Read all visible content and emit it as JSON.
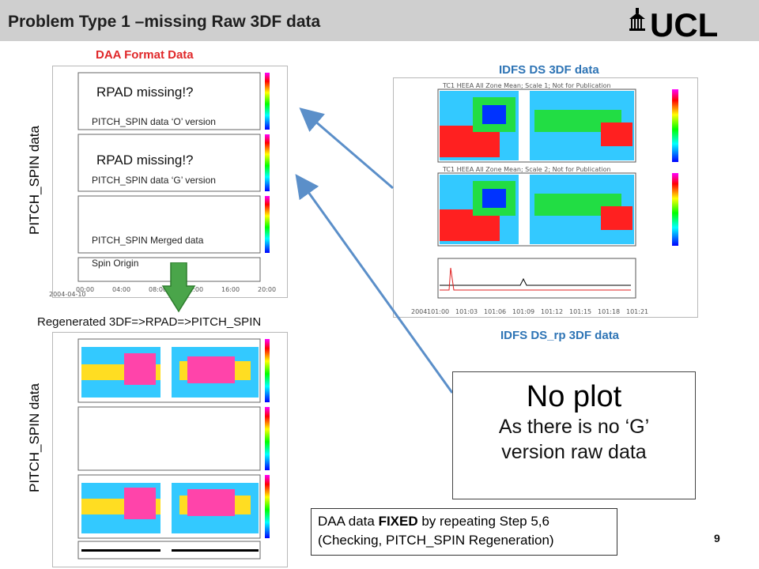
{
  "header": {
    "title": "Problem Type 1 –missing Raw 3DF data",
    "logo": "⛪ UCL"
  },
  "labels": {
    "daa_format": "DAA Format Data",
    "idfs_ds": "IDFS DS 3DF data",
    "idfs_ds_rp": "IDFS DS_rp 3DF data",
    "pitch_spin_top": "PITCH_SPIN data",
    "pitch_spin_bottom": "PITCH_SPIN data",
    "regenerated": "Regenerated  3DF=>RPAD=>PITCH_SPIN"
  },
  "top_plot": {
    "rpad1": "RPAD missing!?",
    "rpad2": "RPAD missing!?",
    "o_version": "PITCH_SPIN data ‘O’ version",
    "g_version": "PITCH_SPIN data ‘G’ version",
    "merged": "PITCH_SPIN Merged data",
    "spin_origin": "Spin Origin",
    "date": "2004-04-10",
    "x_ticks": [
      "00:00",
      "04:00",
      "08:00",
      "12:00",
      "16:00",
      "20:00"
    ]
  },
  "right_plot": {
    "title1": "TC1 HEEA All Zone Mean; Scale 1; Not for Publication",
    "title2": "TC1 HEEA All Zone Mean; Scale 2; Not for Publication",
    "x_ticks": [
      "101:00",
      "101:03",
      "101:06",
      "101:09",
      "101:12",
      "101:15",
      "101:18",
      "101:21"
    ],
    "year": "2004"
  },
  "no_plot": {
    "title": "No plot",
    "line1": "As there is no ‘G’",
    "line2": "version raw data"
  },
  "fixed_note": {
    "line1_pre": "DAA data ",
    "line1_bold": "FIXED",
    "line1_post": " by repeating Step 5,6",
    "line2": "(Checking, PITCH_SPIN Regeneration)"
  },
  "page_number": "9",
  "colors": {
    "title_red": "#e0282a",
    "title_blue": "#2e74b5",
    "arrow_blue": "#5b8fc9",
    "arrow_green": "#4aa54a"
  }
}
